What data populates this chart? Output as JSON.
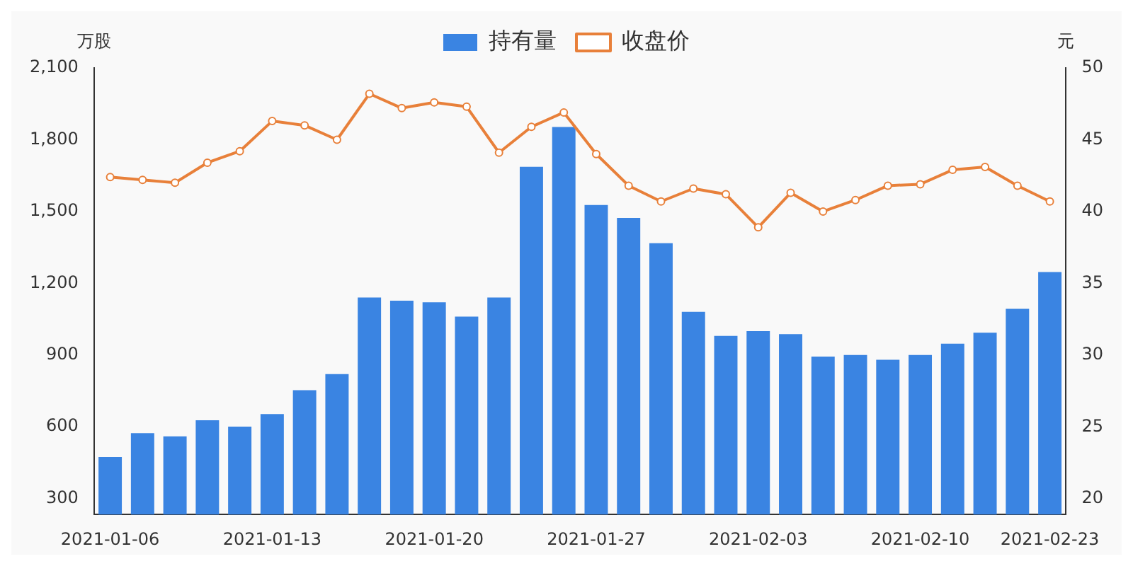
{
  "chart_data": {
    "type": "bar",
    "ylabel": "万股",
    "y2label": "元",
    "categories": [
      "2021-01-06",
      null,
      null,
      null,
      null,
      "2021-01-13",
      null,
      null,
      null,
      null,
      "2021-01-20",
      null,
      null,
      null,
      null,
      "2021-01-27",
      null,
      null,
      null,
      null,
      "2021-02-03",
      null,
      null,
      null,
      null,
      "2021-02-10",
      null,
      null,
      null,
      "2021-02-23"
    ],
    "series": [
      {
        "name": "持有量",
        "color": "#3a84e2",
        "values": [
          473,
          573,
          560,
          627,
          600,
          653,
          753,
          820,
          1140,
          1127,
          1120,
          1060,
          1140,
          1687,
          1853,
          1527,
          1473,
          1367,
          1080,
          980,
          1000,
          987,
          893,
          900,
          880,
          900,
          947,
          993,
          1093,
          1247
        ]
      },
      {
        "name": "收盘价",
        "type": "line",
        "axis": "y2",
        "color": "#e8803a",
        "values": [
          42.4,
          42.2,
          42.0,
          43.4,
          44.2,
          46.3,
          46.0,
          45.0,
          48.2,
          47.2,
          47.6,
          47.3,
          44.1,
          45.9,
          46.9,
          44.0,
          41.8,
          40.7,
          41.6,
          41.2,
          38.9,
          41.3,
          40.0,
          40.8,
          41.8,
          41.9,
          42.9,
          43.1,
          41.8,
          40.7
        ]
      }
    ],
    "ylim": [
      233,
      2100
    ],
    "yticks": [
      300,
      600,
      900,
      {
        "value": 1200,
        "label": "1,200"
      },
      {
        "value": 1500,
        "label": "1,500"
      },
      {
        "value": 1800,
        "label": "1,800"
      },
      {
        "value": 2100,
        "label": "2,100"
      }
    ],
    "y2lim": [
      18.9,
      50
    ],
    "y2ticks": [
      20,
      25,
      30,
      35,
      40,
      45,
      50
    ],
    "grid": false,
    "legend": "top",
    "marker": "circle",
    "line_style": "solid"
  }
}
